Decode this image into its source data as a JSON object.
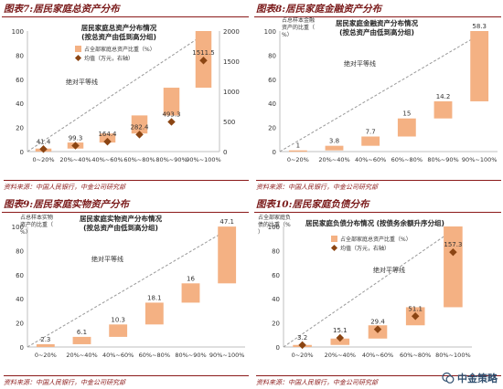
{
  "chart_data": [
    {
      "type": "bar",
      "figure_label": "图表7:",
      "figure_title": "居民家庭总资产分布",
      "title": "居民家庭总资产分布情况",
      "subtitle": "(按总资产由低到高分组)",
      "categories": [
        "0~20%",
        "20%~40%",
        "40%~60%",
        "60%~80%",
        "80%~90%",
        "90%~100%"
      ],
      "cumulative_start": [
        0,
        2.5,
        7.5,
        15,
        30,
        53
      ],
      "cumulative_end": [
        2.5,
        7.5,
        15,
        30,
        53,
        100
      ],
      "ylim": [
        0,
        100
      ],
      "yticks": [
        0,
        20,
        40,
        60,
        80,
        100
      ],
      "y2lim": [
        0,
        2000
      ],
      "y2ticks": [
        0,
        500,
        1000,
        1500,
        2000
      ],
      "line_label": "绝对平等线",
      "legend": [
        "占全部家庭总资产比重（%）",
        "均值（万元，右轴）"
      ],
      "series": [
        {
          "name": "均值（万元，右轴）",
          "axis": "right",
          "values": [
            41.4,
            99.3,
            164.4,
            282.4,
            493.3,
            1511.5
          ]
        }
      ],
      "source": "资料来源：中国人民银行，中金公司研究部"
    },
    {
      "type": "bar",
      "figure_label": "图表8:",
      "figure_title": "居民家庭金融资产分布",
      "title": "居民家庭金融资产分布情况",
      "subtitle": "(按总资产由低到高分组)",
      "y_label": "占总样本金融资产的比重（%）",
      "categories": [
        "0~20%",
        "20%~40%",
        "40%~60%",
        "60%~80%",
        "80%~90%",
        "90%~100%"
      ],
      "values": [
        1,
        3.8,
        7.7,
        15,
        14.2,
        58.3
      ],
      "ylim": [
        0,
        100
      ],
      "yticks": [
        0,
        20,
        40,
        60,
        80,
        100
      ],
      "line_label": "绝对平等线",
      "source": "资料来源：中国人民银行，中金公司研究部"
    },
    {
      "type": "bar",
      "figure_label": "图表9:",
      "figure_title": "居民家庭实物资产分布",
      "title": "居民家庭实物资产分布情况",
      "subtitle": "(按总资产由低到高分组)",
      "y_label": "占总样本实物资产的比重（%）",
      "categories": [
        "0~20%",
        "20%~40%",
        "40%~60%",
        "60%~80%",
        "80%~90%",
        "90%~100%"
      ],
      "values": [
        2.3,
        6.1,
        10.3,
        18.1,
        16,
        47.1
      ],
      "ylim": [
        0,
        100
      ],
      "yticks": [
        0,
        20,
        40,
        60,
        80,
        100
      ],
      "line_label": "绝对平等线",
      "source": "资料来源：中国人民银行，中金公司研究部"
    },
    {
      "type": "bar",
      "figure_label": "图表10:",
      "figure_title": "居民家庭负债分布",
      "title": "居民家庭负债分布情况 (按债务余额升序分组)",
      "y_label": "占全部家庭负债的比重（%）",
      "categories": [
        "0~20%",
        "20%~40%",
        "40%~60%",
        "60%~80%",
        "80%~100%"
      ],
      "cumulative_start": [
        0,
        1.7,
        7,
        18,
        33
      ],
      "cumulative_end": [
        1.7,
        7,
        18,
        33,
        100
      ],
      "ylim": [
        0,
        100
      ],
      "yticks": [
        0,
        20,
        40,
        60,
        80,
        100
      ],
      "line_label": "绝对平等线",
      "legend": [
        "占全部家庭总资产比重（%）",
        "均值（万元，右轴）"
      ],
      "series": [
        {
          "name": "均值（万元，右轴）",
          "axis": "right",
          "values": [
            3.2,
            15.1,
            29.4,
            51.1,
            157.3
          ]
        }
      ],
      "source": "资料来源：中国人民银行，中金公司研究部"
    }
  ],
  "watermark": "中金策略",
  "colors": {
    "bar": "#f4b183",
    "marker": "#8b4513",
    "line": "#999999",
    "axis": "#bfbfbf",
    "accent": "#8b1a1a"
  }
}
